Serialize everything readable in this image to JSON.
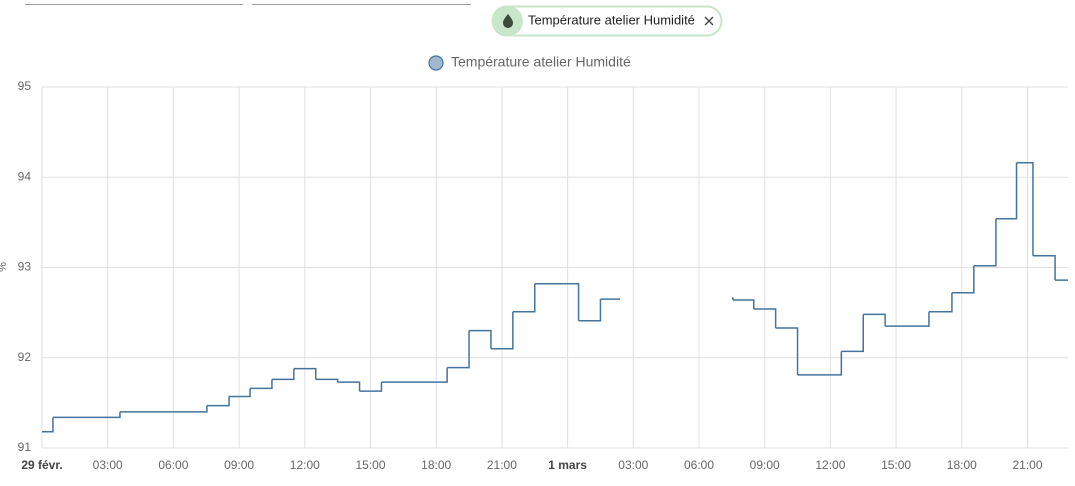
{
  "filter": {
    "chip_label": "Température atelier Humidité"
  },
  "chart_data": {
    "type": "step",
    "y_label": "%",
    "series": [
      {
        "name": "Température atelier Humidité",
        "color": "#44739e",
        "x": [
          0,
          0.5,
          3.56,
          7.53,
          8.54,
          9.5,
          10.5,
          11.5,
          12.5,
          13.5,
          14.5,
          15.5,
          18.5,
          19.5,
          20.5,
          21.5,
          22.5,
          24.5,
          25.5,
          26.4,
          null,
          31.5,
          31.55,
          32.5,
          33.5,
          34.5,
          36.5,
          37.5,
          38.5,
          40.5,
          41.55,
          42.55,
          43.56,
          44.5,
          45.25,
          46.26,
          46.85
        ],
        "values": [
          91.18,
          91.34,
          91.4,
          91.47,
          91.57,
          91.66,
          91.76,
          91.88,
          91.76,
          91.73,
          91.63,
          91.73,
          91.89,
          92.3,
          92.1,
          92.51,
          92.82,
          92.41,
          92.65,
          92.65,
          null,
          92.66,
          92.64,
          92.54,
          92.33,
          91.81,
          92.07,
          92.48,
          92.35,
          92.51,
          92.72,
          93.02,
          93.54,
          94.16,
          93.13,
          92.86,
          92.86
        ]
      }
    ],
    "xlim": [
      0,
      46.85
    ],
    "xticks": [
      {
        "value": 0,
        "label": "29 févr."
      },
      {
        "value": 3,
        "label": "03:00"
      },
      {
        "value": 6,
        "label": "06:00"
      },
      {
        "value": 9,
        "label": "09:00"
      },
      {
        "value": 12,
        "label": "12:00"
      },
      {
        "value": 15,
        "label": "15:00"
      },
      {
        "value": 18,
        "label": "18:00"
      },
      {
        "value": 21,
        "label": "21:00"
      },
      {
        "value": 24,
        "label": "1 mars"
      },
      {
        "value": 27,
        "label": "03:00"
      },
      {
        "value": 30,
        "label": "06:00"
      },
      {
        "value": 33,
        "label": "09:00"
      },
      {
        "value": 36,
        "label": "12:00"
      },
      {
        "value": 39,
        "label": "15:00"
      },
      {
        "value": 42,
        "label": "18:00"
      },
      {
        "value": 45,
        "label": "21:00"
      }
    ],
    "ylim": [
      91,
      95
    ],
    "yticks": [
      91,
      92,
      93,
      94,
      95
    ],
    "grid": true
  }
}
